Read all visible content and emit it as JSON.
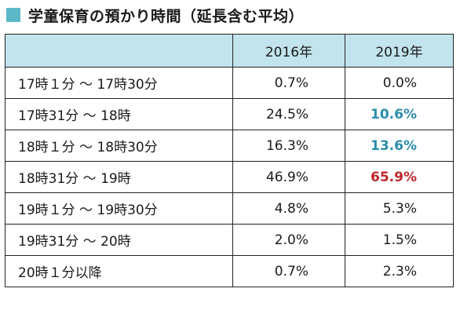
{
  "title": "学童保育の預かり時間（延長含む平均）",
  "colors": {
    "title_square": "#5cb8c6",
    "header_bg": "#c2e4ec",
    "highlight_blue": "#2a8cab",
    "highlight_red": "#c0262c"
  },
  "table": {
    "headers": [
      "",
      "2016年",
      "2019年"
    ],
    "rows": [
      {
        "label": "17時１分 ～ 17時30分",
        "y2016": "0.7%",
        "y2019": "0.0%",
        "highlight": ""
      },
      {
        "label": "17時31分 ～ 18時",
        "y2016": "24.5%",
        "y2019": "10.6%",
        "highlight": "blue"
      },
      {
        "label": "18時１分 ～ 18時30分",
        "y2016": "16.3%",
        "y2019": "13.6%",
        "highlight": "blue"
      },
      {
        "label": "18時31分 ～ 19時",
        "y2016": "46.9%",
        "y2019": "65.9%",
        "highlight": "red"
      },
      {
        "label": "19時１分 ～ 19時30分",
        "y2016": "4.8%",
        "y2019": "5.3%",
        "highlight": ""
      },
      {
        "label": "19時31分 ～ 20時",
        "y2016": "2.0%",
        "y2019": "1.5%",
        "highlight": ""
      },
      {
        "label": "20時１分以降",
        "y2016": "0.7%",
        "y2019": "2.3%",
        "highlight": ""
      }
    ]
  }
}
